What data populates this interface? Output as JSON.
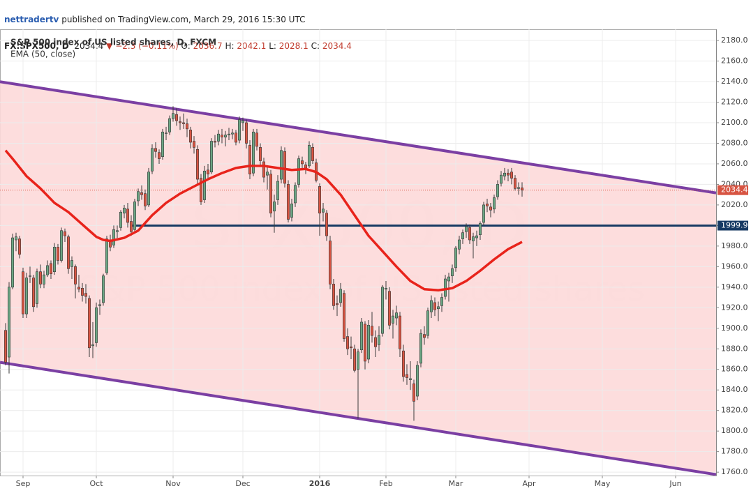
{
  "header": {
    "author": "nettradertv",
    "published": "published on TradingView.com, March 29, 2016 15:30 UTC",
    "symbol": "FX:SPX500, D",
    "last": "2034.4",
    "arrow": "▼",
    "change": "−2.3 (−0.11%)",
    "o_label": "O:",
    "o": "2036.7",
    "h_label": "H:",
    "h": "2042.1",
    "l_label": "L:",
    "l": "2028.1",
    "c_label": "C:",
    "c": "2034.4"
  },
  "chart_data": {
    "type": "candlestick",
    "legend": [
      "S&P 500 index of US listed shares, D, FXCM",
      "EMA (50, close)"
    ],
    "watermark": [
      "SPX500, D",
      "S&P 500 index of US listed shares"
    ],
    "xlim": [
      -1.6,
      203.2
    ],
    "xticks": [
      {
        "value": 5,
        "label": "Sep"
      },
      {
        "value": 26,
        "label": "Oct"
      },
      {
        "value": 48,
        "label": "Nov"
      },
      {
        "value": 68,
        "label": "Dec"
      },
      {
        "value": 90,
        "label": "2016"
      },
      {
        "value": 109,
        "label": "Feb"
      },
      {
        "value": 129,
        "label": "Mar"
      },
      {
        "value": 150,
        "label": "Apr"
      },
      {
        "value": 171,
        "label": "May"
      },
      {
        "value": 192,
        "label": "Jun"
      }
    ],
    "ylim": [
      1756.7,
      2190.9
    ],
    "yticks": [
      {
        "value": 1760,
        "label": "1760.0"
      },
      {
        "value": 1780,
        "label": "1780.0"
      },
      {
        "value": 1800,
        "label": "1800.0"
      },
      {
        "value": 1820,
        "label": "1820.0"
      },
      {
        "value": 1840,
        "label": "1840.0"
      },
      {
        "value": 1860,
        "label": "1860.0"
      },
      {
        "value": 1880,
        "label": "1880.0"
      },
      {
        "value": 1900,
        "label": "1900.0"
      },
      {
        "value": 1920,
        "label": "1920.0"
      },
      {
        "value": 1940,
        "label": "1940.0"
      },
      {
        "value": 1960,
        "label": "1960.0"
      },
      {
        "value": 1980,
        "label": "1980.0"
      },
      {
        "value": 2000,
        "label": "2000.0"
      },
      {
        "value": 2020,
        "label": "2020.0"
      },
      {
        "value": 2040,
        "label": "2040.0"
      },
      {
        "value": 2060,
        "label": "2060.0"
      },
      {
        "value": 2080,
        "label": "2080.0"
      },
      {
        "value": 2100,
        "label": "2100.0"
      },
      {
        "value": 2120,
        "label": "2120.0"
      },
      {
        "value": 2140,
        "label": "2140.0"
      },
      {
        "value": 2160,
        "label": "2160.0"
      },
      {
        "value": 2180,
        "label": "2180.0"
      }
    ],
    "grid": true,
    "colors": {
      "up": "#6ba583",
      "down": "#d75442",
      "wick": "#3a3a3a",
      "ema": "#e8231b",
      "channel": "#7b3fa3",
      "channel_fill": "#fdd9d9",
      "hline": "#163a63",
      "price_line": "#d75442"
    },
    "ohlc": [
      [
        1898,
        1905,
        1864,
        1867
      ],
      [
        1872,
        1945,
        1856,
        1940
      ],
      [
        1940,
        1992,
        1938,
        1988
      ],
      [
        1986,
        1993,
        1975,
        1989
      ],
      [
        1987,
        1990,
        1968,
        1972
      ],
      [
        1955,
        1959,
        1910,
        1914
      ],
      [
        1914,
        1954,
        1910,
        1949
      ],
      [
        1951,
        1960,
        1944,
        1951
      ],
      [
        1949,
        1952,
        1916,
        1921
      ],
      [
        1924,
        1958,
        1920,
        1955
      ],
      [
        1955,
        1962,
        1939,
        1943
      ],
      [
        1943,
        1956,
        1939,
        1952
      ],
      [
        1952,
        1966,
        1950,
        1961
      ],
      [
        1963,
        1966,
        1948,
        1953
      ],
      [
        1955,
        1983,
        1952,
        1979
      ],
      [
        1979,
        1982,
        1962,
        1966
      ],
      [
        1966,
        1998,
        1964,
        1995
      ],
      [
        1994,
        1997,
        1984,
        1990
      ],
      [
        1989,
        1991,
        1953,
        1958
      ],
      [
        1960,
        1970,
        1948,
        1966
      ],
      [
        1960,
        1962,
        1929,
        1943
      ],
      [
        1940,
        1952,
        1935,
        1938
      ],
      [
        1939,
        1944,
        1926,
        1932
      ],
      [
        1934,
        1943,
        1924,
        1931
      ],
      [
        1929,
        1932,
        1872,
        1881
      ],
      [
        1883,
        1906,
        1871,
        1884
      ],
      [
        1886,
        1925,
        1882,
        1920
      ],
      [
        1922,
        1928,
        1913,
        1923
      ],
      [
        1925,
        1953,
        1922,
        1951
      ],
      [
        1954,
        1990,
        1952,
        1987
      ],
      [
        1985,
        1991,
        1975,
        1979
      ],
      [
        1981,
        2000,
        1978,
        1996
      ],
      [
        1994,
        2000,
        1988,
        1995
      ],
      [
        1998,
        2015,
        1995,
        2013
      ],
      [
        2012,
        2020,
        2007,
        2017
      ],
      [
        2016,
        2022,
        1998,
        2003
      ],
      [
        2004,
        2010,
        1990,
        1994
      ],
      [
        1996,
        2026,
        1994,
        2023
      ],
      [
        2024,
        2036,
        2019,
        2033
      ],
      [
        2032,
        2039,
        2025,
        2030
      ],
      [
        2031,
        2035,
        2015,
        2019
      ],
      [
        2020,
        2056,
        2018,
        2052
      ],
      [
        2053,
        2079,
        2050,
        2075
      ],
      [
        2075,
        2081,
        2066,
        2072
      ],
      [
        2071,
        2074,
        2060,
        2065
      ],
      [
        2067,
        2094,
        2064,
        2091
      ],
      [
        2090,
        2096,
        2083,
        2090
      ],
      [
        2091,
        2107,
        2088,
        2104
      ],
      [
        2104,
        2116,
        2101,
        2109
      ],
      [
        2108,
        2114,
        2097,
        2102
      ],
      [
        2101,
        2106,
        2093,
        2100
      ],
      [
        2100,
        2109,
        2094,
        2099
      ],
      [
        2099,
        2104,
        2086,
        2094
      ],
      [
        2093,
        2096,
        2075,
        2081
      ],
      [
        2082,
        2087,
        2070,
        2076
      ],
      [
        2074,
        2078,
        2040,
        2045
      ],
      [
        2046,
        2050,
        2020,
        2023
      ],
      [
        2025,
        2058,
        2022,
        2053
      ],
      [
        2054,
        2060,
        2045,
        2050
      ],
      [
        2052,
        2085,
        2050,
        2082
      ],
      [
        2082,
        2088,
        2076,
        2081
      ],
      [
        2082,
        2093,
        2078,
        2089
      ],
      [
        2088,
        2094,
        2080,
        2086
      ],
      [
        2086,
        2092,
        2077,
        2088
      ],
      [
        2088,
        2095,
        2083,
        2089
      ],
      [
        2089,
        2094,
        2084,
        2090
      ],
      [
        2090,
        2093,
        2078,
        2081
      ],
      [
        2083,
        2106,
        2080,
        2103
      ],
      [
        2100,
        2105,
        2092,
        2102
      ],
      [
        2100,
        2103,
        2075,
        2080
      ],
      [
        2078,
        2083,
        2045,
        2050
      ],
      [
        2051,
        2094,
        2048,
        2091
      ],
      [
        2090,
        2094,
        2073,
        2077
      ],
      [
        2076,
        2080,
        2058,
        2063
      ],
      [
        2062,
        2066,
        2042,
        2047
      ],
      [
        2049,
        2057,
        2035,
        2052
      ],
      [
        2050,
        2054,
        2008,
        2012
      ],
      [
        2014,
        2030,
        1993,
        2023
      ],
      [
        2025,
        2049,
        2020,
        2043
      ],
      [
        2045,
        2077,
        2041,
        2073
      ],
      [
        2072,
        2076,
        2037,
        2041
      ],
      [
        2040,
        2044,
        2003,
        2006
      ],
      [
        2008,
        2026,
        2004,
        2021
      ],
      [
        2022,
        2042,
        2018,
        2039
      ],
      [
        2040,
        2068,
        2037,
        2065
      ],
      [
        2063,
        2067,
        2055,
        2060
      ],
      [
        2059,
        2062,
        2050,
        2056
      ],
      [
        2058,
        2082,
        2056,
        2078
      ],
      [
        2076,
        2080,
        2060,
        2063
      ],
      [
        2061,
        2065,
        2042,
        2044
      ],
      [
        2038,
        2041,
        1990,
        2012
      ],
      [
        2013,
        2022,
        2004,
        2016
      ],
      [
        2012,
        2015,
        1985,
        1990
      ],
      [
        1985,
        1990,
        1938,
        1943
      ],
      [
        1943,
        1948,
        1918,
        1922
      ],
      [
        1924,
        1932,
        1912,
        1923
      ],
      [
        1925,
        1944,
        1921,
        1938
      ],
      [
        1934,
        1937,
        1887,
        1890
      ],
      [
        1892,
        1900,
        1874,
        1880
      ],
      [
        1882,
        1892,
        1870,
        1881
      ],
      [
        1880,
        1884,
        1857,
        1859
      ],
      [
        1860,
        1880,
        1812,
        1877
      ],
      [
        1879,
        1910,
        1876,
        1906
      ],
      [
        1904,
        1907,
        1860,
        1868
      ],
      [
        1870,
        1908,
        1866,
        1903
      ],
      [
        1902,
        1916,
        1886,
        1893
      ],
      [
        1891,
        1898,
        1872,
        1882
      ],
      [
        1884,
        1902,
        1878,
        1893
      ],
      [
        1895,
        1942,
        1892,
        1940
      ],
      [
        1938,
        1946,
        1928,
        1939
      ],
      [
        1936,
        1940,
        1899,
        1903
      ],
      [
        1905,
        1918,
        1890,
        1912
      ],
      [
        1910,
        1922,
        1903,
        1915
      ],
      [
        1912,
        1916,
        1872,
        1880
      ],
      [
        1878,
        1884,
        1848,
        1853
      ],
      [
        1855,
        1865,
        1845,
        1852
      ],
      [
        1850,
        1868,
        1840,
        1851
      ],
      [
        1846,
        1850,
        1810,
        1829
      ],
      [
        1834,
        1868,
        1830,
        1864
      ],
      [
        1866,
        1899,
        1862,
        1895
      ],
      [
        1894,
        1902,
        1884,
        1891
      ],
      [
        1893,
        1920,
        1890,
        1917
      ],
      [
        1916,
        1932,
        1910,
        1927
      ],
      [
        1925,
        1930,
        1912,
        1918
      ],
      [
        1919,
        1926,
        1907,
        1921
      ],
      [
        1922,
        1934,
        1916,
        1930
      ],
      [
        1931,
        1952,
        1928,
        1948
      ],
      [
        1946,
        1954,
        1926,
        1950
      ],
      [
        1951,
        1962,
        1944,
        1958
      ],
      [
        1959,
        1980,
        1955,
        1978
      ],
      [
        1977,
        1990,
        1972,
        1986
      ],
      [
        1987,
        1996,
        1982,
        1993
      ],
      [
        1994,
        2002,
        1988,
        1999
      ],
      [
        1998,
        2001,
        1982,
        1986
      ],
      [
        1985,
        1993,
        1968,
        1989
      ],
      [
        1988,
        1995,
        1980,
        1990
      ],
      [
        1991,
        2004,
        1986,
        2002
      ],
      [
        2003,
        2023,
        2000,
        2020
      ],
      [
        2021,
        2026,
        2013,
        2019
      ],
      [
        2018,
        2022,
        2008,
        2015
      ],
      [
        2016,
        2030,
        2012,
        2027
      ],
      [
        2028,
        2044,
        2025,
        2040
      ],
      [
        2041,
        2053,
        2038,
        2049
      ],
      [
        2048,
        2056,
        2044,
        2051
      ],
      [
        2051,
        2055,
        2043,
        2049
      ],
      [
        2052,
        2056,
        2040,
        2046
      ],
      [
        2046,
        2049,
        2034,
        2036
      ],
      [
        2036,
        2042,
        2030,
        2037
      ],
      [
        2036.7,
        2042.1,
        2028.1,
        2034.4
      ]
    ],
    "ema": {
      "x": [
        0,
        2,
        6,
        10,
        14,
        18,
        22,
        26,
        28,
        30,
        34,
        38,
        42,
        46,
        50,
        54,
        58,
        62,
        66,
        70,
        74,
        78,
        82,
        86,
        89,
        92,
        96,
        100,
        104,
        108,
        112,
        116,
        120,
        124,
        128,
        132,
        136,
        140,
        144,
        148
      ],
      "values": [
        2073,
        2065,
        2048,
        2036,
        2022,
        2013,
        2001,
        1989,
        1986,
        1985,
        1988,
        1995,
        2010,
        2022,
        2031,
        2038,
        2045,
        2051,
        2056,
        2058,
        2058,
        2056,
        2054,
        2055,
        2052,
        2045,
        2030,
        2010,
        1990,
        1975,
        1960,
        1946,
        1938,
        1937,
        1939,
        1946,
        1956,
        1967,
        1977,
        1984
      ]
    },
    "channel": {
      "x": [
        0,
        203
      ],
      "upper": [
        2139,
        2032
      ],
      "lower": [
        1866,
        1758
      ]
    },
    "hline": {
      "value": 1999.9,
      "x_start": 36
    }
  }
}
